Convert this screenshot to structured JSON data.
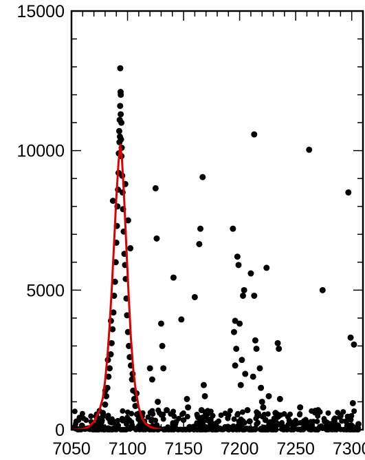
{
  "chart_data": {
    "type": "scatter",
    "title": "",
    "xlabel": "",
    "ylabel": "",
    "xlim": [
      7050,
      7310
    ],
    "ylim": [
      0,
      15000
    ],
    "xticks": [
      7050,
      7100,
      7150,
      7200,
      7250,
      7300
    ],
    "yticks": [
      0,
      5000,
      10000,
      15000
    ],
    "x_tick_labels": [
      "7050",
      "7100",
      "7150",
      "7200",
      "7250",
      "7300"
    ],
    "y_tick_labels": [
      "0",
      "5000",
      "10000",
      "15000"
    ],
    "grid": false,
    "legend": "none",
    "series": [
      {
        "kind": "points",
        "color": "#000000",
        "x": [
          7093.5,
          7093.8,
          7094,
          7093.4,
          7093.9,
          7094.5,
          7093,
          7092.6,
          7093.2,
          7094.2,
          7092.8,
          7094.8,
          7092.2,
          7094.6,
          7092,
          7095.2,
          7091.5,
          7095.6,
          7091,
          7096,
          7090.5,
          7096.6,
          7090,
          7097.2,
          7089.4,
          7097.8,
          7088.8,
          7098.4,
          7088,
          7099,
          7087.4,
          7099.6,
          7086.6,
          7100.4,
          7085.8,
          7101.2,
          7085,
          7102,
          7084,
          7103,
          7083,
          7104,
          7082,
          7105,
          7081,
          7106,
          7080,
          7107,
          7078,
          7108.5,
          7076,
          7110,
          7074,
          7112,
          7071,
          7115,
          7068,
          7118,
          7065,
          7120,
          7062,
          7058,
          7100.5,
          7098,
          7087,
          7082.5,
          7104.5,
          7108,
          7102.5,
          7085.2,
          7080.2,
          7125,
          7126,
          7120,
          7122,
          7130,
          7131,
          7132,
          7127,
          7135,
          7141,
          7148,
          7153,
          7154,
          7160,
          7164,
          7165,
          7167,
          7168,
          7166,
          7169,
          7170,
          7165,
          7163,
          7194,
          7197,
          7198,
          7199,
          7196,
          7201,
          7202,
          7204,
          7203,
          7205,
          7210,
          7212,
          7213,
          7214,
          7215,
          7218,
          7219,
          7220,
          7224,
          7226,
          7234,
          7235,
          7236,
          7232,
          7231,
          7195,
          7196,
          7200,
          7207,
          7209,
          7216,
          7221,
          7223,
          7229,
          7213,
          7262,
          7274,
          7297,
          7299,
          7302,
          7270,
          7276,
          7281,
          7285,
          7290,
          7295,
          7301,
          7306,
          7254,
          7248
        ],
        "y": [
          12950,
          12100,
          12000,
          11600,
          11300,
          11000,
          11100,
          10700,
          10500,
          10400,
          10300,
          10100,
          9900,
          9800,
          9200,
          9100,
          8600,
          8500,
          8000,
          7900,
          7300,
          7100,
          6700,
          6300,
          6000,
          5900,
          5300,
          5400,
          4800,
          4700,
          4200,
          4100,
          3600,
          3500,
          3100,
          3000,
          2700,
          2600,
          2200,
          2300,
          1900,
          1800,
          1500,
          1400,
          1200,
          1100,
          900,
          850,
          600,
          550,
          400,
          380,
          280,
          260,
          150,
          160,
          80,
          100,
          50,
          60,
          30,
          20,
          7500,
          8800,
          8200,
          2500,
          2000,
          1300,
          6500,
          3900,
          1400,
          8650,
          6850,
          2200,
          1800,
          3800,
          3000,
          2200,
          1000,
          700,
          5450,
          3950,
          1100,
          800,
          4750,
          6650,
          7200,
          9050,
          1600,
          700,
          1200,
          500,
          300,
          450,
          7200,
          2900,
          6200,
          5900,
          2300,
          1600,
          2500,
          5000,
          4800,
          2000,
          5600,
          1900,
          4800,
          3200,
          2900,
          2200,
          1500,
          1000,
          5800,
          1200,
          3100,
          2900,
          1100,
          600,
          400,
          3500,
          3900,
          3800,
          700,
          300,
          500,
          800,
          350,
          200,
          10580,
          10030,
          5000,
          8500,
          3300,
          3050,
          700,
          300,
          200,
          400,
          500,
          300,
          950,
          200,
          800,
          250
        ]
      },
      {
        "kind": "fit",
        "color": "#dd0000",
        "x": [
          7050,
          7060,
          7065,
          7070,
          7075,
          7078,
          7080,
          7082,
          7084,
          7086,
          7088,
          7090,
          7092,
          7093.5,
          7095,
          7097,
          7099,
          7101,
          7103,
          7105,
          7107,
          7110,
          7113,
          7116,
          7120,
          7125,
          7130
        ],
        "y": [
          0,
          20,
          90,
          280,
          700,
          1150,
          1750,
          2600,
          3700,
          5100,
          6700,
          8300,
          9600,
          10200,
          9700,
          8300,
          6500,
          4800,
          3300,
          2200,
          1500,
          800,
          420,
          220,
          100,
          40,
          10
        ]
      }
    ]
  }
}
